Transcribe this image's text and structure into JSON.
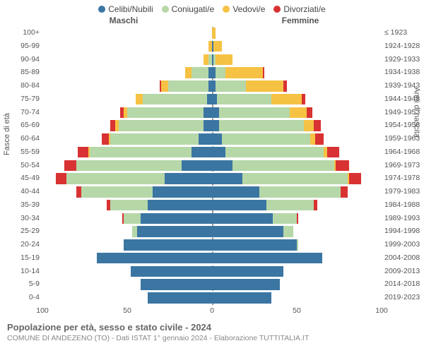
{
  "chart": {
    "type": "population-pyramid",
    "background_color": "#ffffff",
    "font_family": "Arial",
    "legend_fontsize": 12,
    "label_fontsize": 10.5,
    "header_fontsize": 12,
    "series": [
      {
        "key": "celibi",
        "label": "Celibi/Nubili",
        "color": "#3b76a3"
      },
      {
        "key": "coniugati",
        "label": "Coniugati/e",
        "color": "#b6d7a8"
      },
      {
        "key": "vedovi",
        "label": "Vedovi/e",
        "color": "#f6c244"
      },
      {
        "key": "divorziati",
        "label": "Divorziati/e",
        "color": "#d93232"
      }
    ],
    "header_left": "Maschi",
    "header_right": "Femmine",
    "y_title_left": "Fasce di età",
    "y_title_right": "Anni di nascita",
    "xlim": 100,
    "x_ticks": [
      100,
      50,
      0,
      50,
      100
    ],
    "rows": [
      {
        "age": "100+",
        "birth": "≤ 1923",
        "m": [
          0,
          0,
          0,
          0
        ],
        "f": [
          0,
          0,
          2,
          0
        ]
      },
      {
        "age": "95-99",
        "birth": "1924-1928",
        "m": [
          0,
          0,
          2,
          0
        ],
        "f": [
          1,
          0,
          5,
          0
        ]
      },
      {
        "age": "90-94",
        "birth": "1929-1933",
        "m": [
          0,
          2,
          3,
          0
        ],
        "f": [
          1,
          1,
          10,
          0
        ]
      },
      {
        "age": "85-89",
        "birth": "1934-1938",
        "m": [
          2,
          10,
          4,
          0
        ],
        "f": [
          2,
          6,
          22,
          1
        ]
      },
      {
        "age": "80-84",
        "birth": "1939-1943",
        "m": [
          2,
          24,
          4,
          1
        ],
        "f": [
          2,
          18,
          22,
          2
        ]
      },
      {
        "age": "75-79",
        "birth": "1944-1948",
        "m": [
          3,
          38,
          4,
          0
        ],
        "f": [
          3,
          32,
          18,
          2
        ]
      },
      {
        "age": "70-74",
        "birth": "1949-1953",
        "m": [
          5,
          45,
          2,
          2
        ],
        "f": [
          4,
          42,
          10,
          3
        ]
      },
      {
        "age": "65-69",
        "birth": "1954-1958",
        "m": [
          5,
          50,
          2,
          3
        ],
        "f": [
          4,
          50,
          6,
          4
        ]
      },
      {
        "age": "60-64",
        "birth": "1959-1963",
        "m": [
          8,
          52,
          1,
          4
        ],
        "f": [
          6,
          52,
          3,
          5
        ]
      },
      {
        "age": "55-59",
        "birth": "1964-1968",
        "m": [
          12,
          60,
          1,
          6
        ],
        "f": [
          8,
          58,
          2,
          7
        ]
      },
      {
        "age": "50-54",
        "birth": "1969-1973",
        "m": [
          18,
          62,
          0,
          7
        ],
        "f": [
          12,
          60,
          1,
          8
        ]
      },
      {
        "age": "45-49",
        "birth": "1974-1978",
        "m": [
          28,
          58,
          0,
          6
        ],
        "f": [
          18,
          62,
          1,
          7
        ]
      },
      {
        "age": "40-44",
        "birth": "1979-1983",
        "m": [
          35,
          42,
          0,
          3
        ],
        "f": [
          28,
          48,
          0,
          4
        ]
      },
      {
        "age": "35-39",
        "birth": "1984-1988",
        "m": [
          38,
          22,
          0,
          2
        ],
        "f": [
          32,
          28,
          0,
          2
        ]
      },
      {
        "age": "30-34",
        "birth": "1989-1993",
        "m": [
          42,
          10,
          0,
          1
        ],
        "f": [
          36,
          14,
          0,
          1
        ]
      },
      {
        "age": "25-29",
        "birth": "1994-1998",
        "m": [
          44,
          3,
          0,
          0
        ],
        "f": [
          42,
          6,
          0,
          0
        ]
      },
      {
        "age": "20-24",
        "birth": "1999-2003",
        "m": [
          52,
          0,
          0,
          0
        ],
        "f": [
          50,
          1,
          0,
          0
        ]
      },
      {
        "age": "15-19",
        "birth": "2004-2008",
        "m": [
          68,
          0,
          0,
          0
        ],
        "f": [
          65,
          0,
          0,
          0
        ]
      },
      {
        "age": "10-14",
        "birth": "2009-2013",
        "m": [
          48,
          0,
          0,
          0
        ],
        "f": [
          42,
          0,
          0,
          0
        ]
      },
      {
        "age": "5-9",
        "birth": "2014-2018",
        "m": [
          42,
          0,
          0,
          0
        ],
        "f": [
          40,
          0,
          0,
          0
        ]
      },
      {
        "age": "0-4",
        "birth": "2019-2023",
        "m": [
          38,
          0,
          0,
          0
        ],
        "f": [
          35,
          0,
          0,
          0
        ]
      }
    ]
  },
  "footer": {
    "title": "Popolazione per età, sesso e stato civile - 2024",
    "subtitle": "COMUNE DI ANDEZENO (TO) - Dati ISTAT 1° gennaio 2024 - Elaborazione TUTTITALIA.IT"
  }
}
